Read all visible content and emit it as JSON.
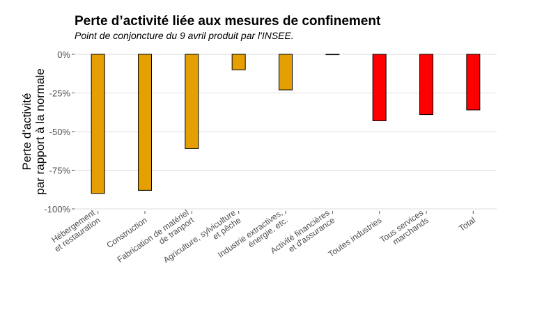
{
  "chart_data": {
    "type": "bar",
    "title": "Perte d’activité liée aux mesures de confinement",
    "subtitle": "Point de conjoncture du 9 avril produit par l'INSEE.",
    "ylabel_lines": [
      "Perte d'activité",
      "par rapport à la normale"
    ],
    "xlabel": "",
    "ylim": [
      -100,
      0
    ],
    "yticks": [
      0,
      -25,
      -50,
      -75,
      -100
    ],
    "ytick_labels": [
      "0%",
      "-25%",
      "-50%",
      "-75%",
      "-100%"
    ],
    "grid": true,
    "categories": [
      [
        "Hébergement",
        "et restauration"
      ],
      [
        "Construction"
      ],
      [
        "Fabrication de matériel",
        "de tranport"
      ],
      [
        "Agriculture, sylviculture",
        "et pêche"
      ],
      [
        "Industrie extractives,",
        "énergie, etc."
      ],
      [
        "Activité financières",
        "et d'assurance"
      ],
      [
        "Toutes industries"
      ],
      [
        "Tous services",
        "marchands"
      ],
      [
        "Total"
      ]
    ],
    "values": [
      -90,
      -88,
      -61,
      -10,
      -23,
      0,
      -43,
      -39,
      -36
    ],
    "colors": [
      "#E69F00",
      "#E69F00",
      "#E69F00",
      "#E69F00",
      "#E69F00",
      "#E69F00",
      "#FF0000",
      "#FF0000",
      "#FF0000"
    ]
  }
}
